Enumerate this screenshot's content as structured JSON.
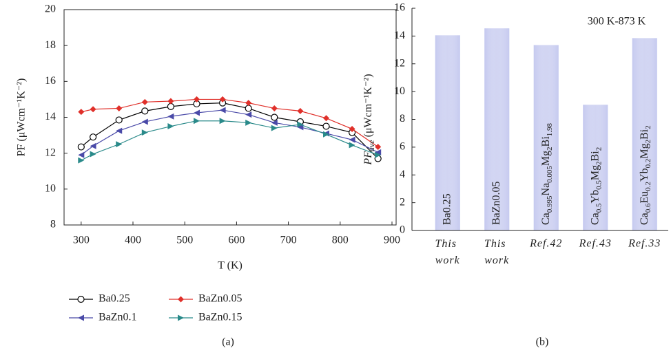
{
  "chart_data": [
    {
      "type": "line",
      "panel_label": "(a)",
      "x_label": "T (K)",
      "y_label": "PF (μWcm⁻¹K⁻²)",
      "x": [
        300,
        323,
        373,
        423,
        473,
        523,
        573,
        623,
        673,
        723,
        773,
        823,
        873
      ],
      "xlim": [
        267,
        908
      ],
      "xticks": [
        300,
        400,
        500,
        600,
        700,
        800,
        900
      ],
      "ylim": [
        8,
        20
      ],
      "yticks": [
        8,
        10,
        12,
        14,
        16,
        18,
        20
      ],
      "legend": "bottom",
      "series": [
        {
          "name": "Ba0.25",
          "color": "#000000",
          "marker": "circle-open",
          "values": [
            12.35,
            12.9,
            13.85,
            14.35,
            14.6,
            14.75,
            14.8,
            14.5,
            14.0,
            13.75,
            13.5,
            13.15,
            11.7
          ]
        },
        {
          "name": "BaZn0.05",
          "color": "#e0302a",
          "marker": "diamond",
          "values": [
            14.3,
            14.45,
            14.5,
            14.85,
            14.9,
            15.0,
            15.0,
            14.8,
            14.5,
            14.35,
            13.95,
            13.35,
            12.35
          ]
        },
        {
          "name": "BaZn0.1",
          "color": "#4a4aa8",
          "marker": "triangle-left",
          "values": [
            11.9,
            12.4,
            13.25,
            13.75,
            14.05,
            14.25,
            14.4,
            14.15,
            13.7,
            13.45,
            13.1,
            12.75,
            12.05
          ]
        },
        {
          "name": "BaZn0.15",
          "color": "#2a8a8a",
          "marker": "triangle-right",
          "values": [
            11.6,
            11.95,
            12.5,
            13.15,
            13.5,
            13.8,
            13.8,
            13.7,
            13.4,
            13.6,
            13.05,
            12.45,
            11.9
          ]
        }
      ]
    },
    {
      "type": "bar",
      "panel_label": "(b)",
      "y_label": "PFave (μWcm⁻¹K⁻²)",
      "annotation": "300 K-873 K",
      "categories": [
        "This work",
        "This work",
        "Ref.42",
        "Ref.43",
        "Ref.33"
      ],
      "bar_labels": [
        "Ba0.25",
        "BaZn0.05",
        "Ca0.995Na0.005Mg2Bi1.98",
        "Ca0.5Yb0.5Mg2Bi2",
        "Ca0.6Eu0.2Yb0.2Mg2Bi2"
      ],
      "values": [
        14.05,
        14.55,
        13.35,
        9.05,
        13.85
      ],
      "color": "#c5c9ef",
      "ylim": [
        0,
        16
      ],
      "yticks": [
        0,
        2,
        4,
        6,
        8,
        10,
        12,
        14,
        16
      ]
    }
  ]
}
